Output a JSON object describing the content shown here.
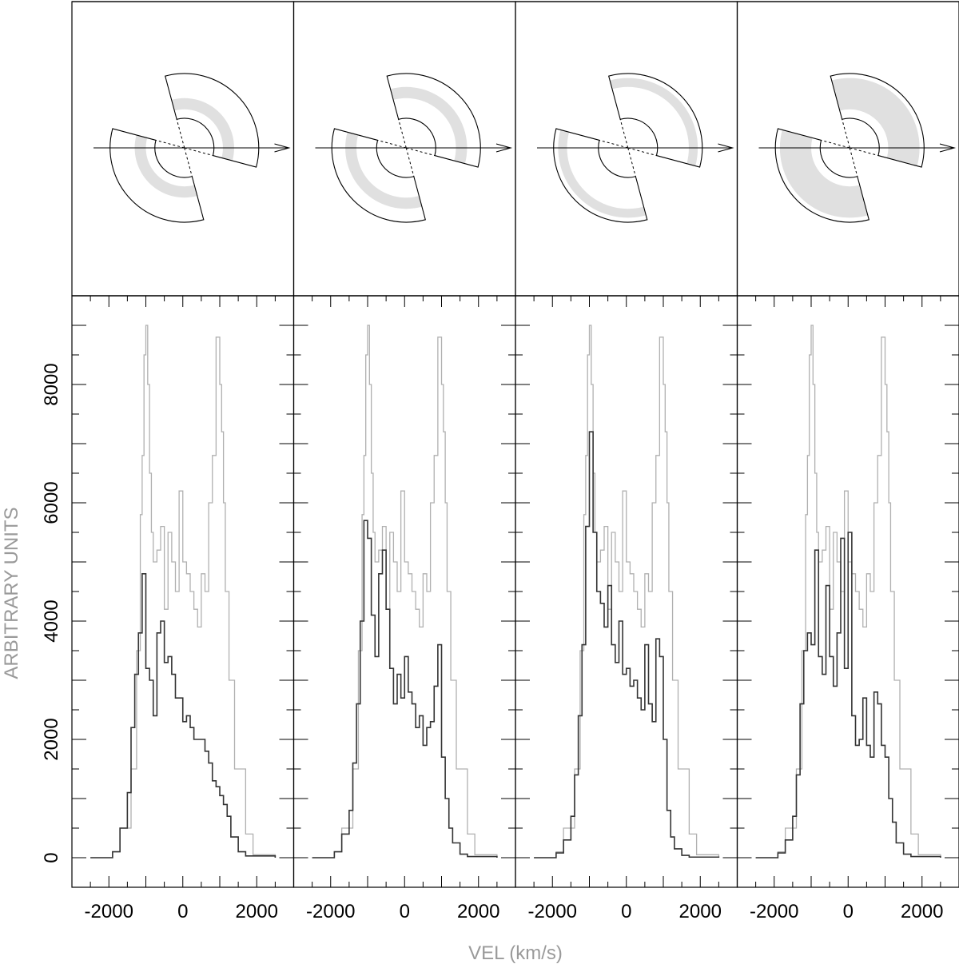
{
  "figure": {
    "xlabel": "VEL (km/s)",
    "ylabel": "ARBITRARY UNITS"
  },
  "colors": {
    "total_profile": "#b0b0b0",
    "component_profile": "#333333",
    "ring_fill": "#e0e0e0",
    "frame": "#000000"
  },
  "chart_data": [
    {
      "type": "line",
      "panel": 1,
      "xlim": [
        -3000,
        3000
      ],
      "ylim": [
        -500,
        9500
      ],
      "x_ticks": [
        -2000,
        0,
        2000
      ],
      "x_tick_labels": [
        "-2000",
        "0",
        "2000"
      ],
      "y_ticks": [
        0,
        2000,
        4000,
        6000,
        8000
      ],
      "y_tick_labels": [
        "0",
        "2000",
        "4000",
        "6000",
        "8000"
      ],
      "shaded_region": {
        "type": "ring",
        "r_inner": 0.2,
        "r_outer": 0.45
      },
      "series": [
        {
          "role": "total",
          "x": [
            -2500,
            -1900,
            -1700,
            -1400,
            -1250,
            -1150,
            -1100,
            -1050,
            -1000,
            -950,
            -900,
            -850,
            -800,
            -700,
            -600,
            -500,
            -400,
            -300,
            -200,
            -100,
            0,
            100,
            200,
            300,
            400,
            500,
            600,
            700,
            800,
            900,
            1000,
            1050,
            1100,
            1150,
            1250,
            1400,
            1700,
            1900,
            2500
          ],
          "y": [
            0,
            100,
            500,
            1500,
            3500,
            5800,
            6800,
            8500,
            9000,
            8000,
            6500,
            5500,
            5000,
            5200,
            5600,
            4200,
            5500,
            5000,
            4500,
            6200,
            5000,
            4800,
            4500,
            4200,
            3900,
            4800,
            4500,
            6000,
            6800,
            8800,
            8000,
            7200,
            6000,
            4500,
            3000,
            1500,
            400,
            50,
            0
          ]
        },
        {
          "role": "component",
          "x": [
            -2500,
            -1900,
            -1700,
            -1500,
            -1400,
            -1300,
            -1200,
            -1100,
            -1000,
            -900,
            -800,
            -700,
            -600,
            -500,
            -400,
            -300,
            -200,
            -100,
            0,
            100,
            200,
            300,
            400,
            500,
            600,
            700,
            800,
            900,
            1000,
            1100,
            1200,
            1300,
            1500,
            1700,
            2500
          ],
          "y": [
            0,
            100,
            500,
            1100,
            2200,
            3100,
            3800,
            4800,
            3200,
            3000,
            2400,
            3800,
            4000,
            3300,
            3400,
            3100,
            2700,
            2700,
            2300,
            2400,
            2200,
            2000,
            2000,
            2000,
            1800,
            1600,
            1300,
            1200,
            1050,
            900,
            700,
            350,
            100,
            30,
            0
          ]
        }
      ]
    },
    {
      "type": "line",
      "panel": 2,
      "xlim": [
        -3000,
        3000
      ],
      "ylim": [
        -500,
        9500
      ],
      "x_ticks": [
        -2000,
        0,
        2000
      ],
      "x_tick_labels": [
        "-2000",
        "0",
        "2000"
      ],
      "shaded_region": {
        "type": "ring",
        "r_inner": 0.45,
        "r_outer": 0.7
      },
      "series": [
        {
          "role": "total",
          "x": [
            -2500,
            -1900,
            -1700,
            -1400,
            -1250,
            -1150,
            -1100,
            -1050,
            -1000,
            -950,
            -900,
            -850,
            -800,
            -700,
            -600,
            -500,
            -400,
            -300,
            -200,
            -100,
            0,
            100,
            200,
            300,
            400,
            500,
            600,
            700,
            800,
            900,
            1000,
            1050,
            1100,
            1150,
            1250,
            1400,
            1700,
            1900,
            2500
          ],
          "y": [
            0,
            100,
            500,
            1500,
            3500,
            5800,
            6800,
            8500,
            9000,
            8000,
            6500,
            5500,
            5000,
            5200,
            5600,
            4200,
            5500,
            5000,
            4500,
            6200,
            5000,
            4800,
            4500,
            4200,
            3900,
            4800,
            4500,
            6000,
            6800,
            8800,
            8000,
            7200,
            6000,
            4500,
            3000,
            1500,
            400,
            50,
            0
          ]
        },
        {
          "role": "component",
          "x": [
            -2500,
            -1900,
            -1700,
            -1500,
            -1400,
            -1300,
            -1200,
            -1100,
            -1000,
            -900,
            -800,
            -700,
            -600,
            -500,
            -400,
            -300,
            -200,
            -100,
            0,
            100,
            200,
            300,
            400,
            500,
            600,
            700,
            800,
            900,
            1000,
            1100,
            1200,
            1300,
            1500,
            1700,
            2500
          ],
          "y": [
            0,
            100,
            400,
            800,
            1600,
            2600,
            4000,
            5700,
            5400,
            4100,
            3400,
            4800,
            5200,
            4200,
            3200,
            2600,
            3100,
            2700,
            3400,
            2800,
            2600,
            2200,
            2400,
            1900,
            2200,
            2300,
            2900,
            3600,
            1700,
            1000,
            500,
            250,
            60,
            20,
            0
          ]
        }
      ]
    },
    {
      "type": "line",
      "panel": 3,
      "xlim": [
        -3000,
        3000
      ],
      "ylim": [
        -500,
        9500
      ],
      "x_ticks": [
        -2000,
        0,
        2000
      ],
      "x_tick_labels": [
        "-2000",
        "0",
        "2000"
      ],
      "shaded_region": {
        "type": "ring",
        "r_inner": 0.7,
        "r_outer": 0.9
      },
      "series": [
        {
          "role": "total",
          "x": [
            -2500,
            -1900,
            -1700,
            -1400,
            -1250,
            -1150,
            -1100,
            -1050,
            -1000,
            -950,
            -900,
            -850,
            -800,
            -700,
            -600,
            -500,
            -400,
            -300,
            -200,
            -100,
            0,
            100,
            200,
            300,
            400,
            500,
            600,
            700,
            800,
            900,
            1000,
            1050,
            1100,
            1150,
            1250,
            1400,
            1700,
            1900,
            2500
          ],
          "y": [
            0,
            100,
            500,
            1500,
            3500,
            5800,
            6800,
            8500,
            9000,
            8000,
            6500,
            5500,
            5000,
            5200,
            5600,
            4200,
            5500,
            5000,
            4500,
            6200,
            5000,
            4800,
            4500,
            4200,
            3900,
            4800,
            4500,
            6000,
            6800,
            8800,
            8000,
            7200,
            6000,
            4500,
            3000,
            1500,
            400,
            50,
            0
          ]
        },
        {
          "role": "component",
          "x": [
            -2500,
            -1900,
            -1700,
            -1500,
            -1400,
            -1300,
            -1200,
            -1100,
            -1000,
            -900,
            -800,
            -700,
            -600,
            -500,
            -400,
            -300,
            -200,
            -100,
            0,
            100,
            200,
            300,
            400,
            500,
            600,
            700,
            800,
            900,
            1000,
            1100,
            1200,
            1300,
            1500,
            1700,
            2500
          ],
          "y": [
            0,
            80,
            300,
            700,
            1400,
            2400,
            3600,
            5600,
            7200,
            5500,
            4500,
            4300,
            3900,
            4600,
            3600,
            3300,
            4000,
            3100,
            3200,
            2900,
            3000,
            2700,
            2500,
            3600,
            2600,
            2300,
            3700,
            3400,
            2000,
            800,
            350,
            150,
            40,
            10,
            0
          ]
        }
      ]
    },
    {
      "type": "line",
      "panel": 4,
      "xlim": [
        -3000,
        3000
      ],
      "ylim": [
        -500,
        9500
      ],
      "x_ticks": [
        -2000,
        0,
        2000
      ],
      "x_tick_labels": [
        "-2000",
        "0",
        "2000"
      ],
      "shaded_region": {
        "type": "ring",
        "r_inner": 0.2,
        "r_outer": 0.9
      },
      "series": [
        {
          "role": "total",
          "x": [
            -2500,
            -1900,
            -1700,
            -1400,
            -1250,
            -1150,
            -1100,
            -1050,
            -1000,
            -950,
            -900,
            -850,
            -800,
            -700,
            -600,
            -500,
            -400,
            -300,
            -200,
            -100,
            0,
            100,
            200,
            300,
            400,
            500,
            600,
            700,
            800,
            900,
            1000,
            1050,
            1100,
            1150,
            1250,
            1400,
            1700,
            1900,
            2500
          ],
          "y": [
            0,
            100,
            500,
            1500,
            3500,
            5800,
            6800,
            8500,
            9000,
            8000,
            6500,
            5500,
            5000,
            5200,
            5600,
            4200,
            5500,
            5000,
            4500,
            6200,
            5000,
            4800,
            4500,
            4200,
            3900,
            4800,
            4500,
            6000,
            6800,
            8800,
            8000,
            7200,
            6000,
            4500,
            3000,
            1500,
            400,
            50,
            0
          ]
        },
        {
          "role": "component",
          "x": [
            -2500,
            -1900,
            -1700,
            -1500,
            -1400,
            -1300,
            -1200,
            -1100,
            -1000,
            -900,
            -800,
            -700,
            -600,
            -500,
            -400,
            -300,
            -200,
            -100,
            0,
            100,
            200,
            300,
            400,
            500,
            600,
            700,
            800,
            900,
            1000,
            1100,
            1200,
            1300,
            1500,
            1700,
            2500
          ],
          "y": [
            0,
            80,
            300,
            700,
            1400,
            2600,
            3500,
            3800,
            3600,
            5200,
            3400,
            3100,
            4600,
            3400,
            2900,
            3800,
            5400,
            3200,
            5500,
            2400,
            1900,
            2000,
            2700,
            1900,
            1700,
            2800,
            2600,
            1900,
            1700,
            1000,
            600,
            250,
            60,
            20,
            0
          ]
        }
      ]
    }
  ]
}
